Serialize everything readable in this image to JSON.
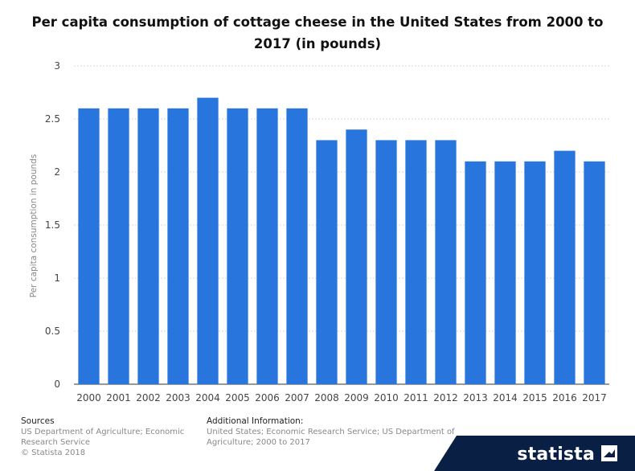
{
  "chart_data": {
    "type": "bar",
    "title": "Per capita consumption of cottage cheese in the United States from 2000 to 2017 (in pounds)",
    "xlabel": "",
    "ylabel": "Per capita consumption in pounds",
    "categories": [
      "2000",
      "2001",
      "2002",
      "2003",
      "2004",
      "2005",
      "2006",
      "2007",
      "2008",
      "2009",
      "2010",
      "2011",
      "2012",
      "2013",
      "2014",
      "2015",
      "2016",
      "2017"
    ],
    "values": [
      2.6,
      2.6,
      2.6,
      2.6,
      2.7,
      2.6,
      2.6,
      2.6,
      2.3,
      2.4,
      2.3,
      2.3,
      2.3,
      2.1,
      2.1,
      2.1,
      2.2,
      2.1
    ],
    "ylim": [
      0,
      3
    ],
    "yticks": [
      "0",
      "0.5",
      "1",
      "1.5",
      "2",
      "2.5",
      "3"
    ],
    "grid": true,
    "bar_color": "#2876dd"
  },
  "footer": {
    "sources_heading": "Sources",
    "sources_line1": "US Department of Agriculture; Economic Research Service",
    "copyright": "© Statista 2018",
    "additional_heading": "Additional Information:",
    "additional_text": "United States; Economic Research Service; US Department of Agriculture; 2000 to 2017"
  },
  "brand": {
    "name": "statista",
    "icon": "statista-logo-icon"
  }
}
